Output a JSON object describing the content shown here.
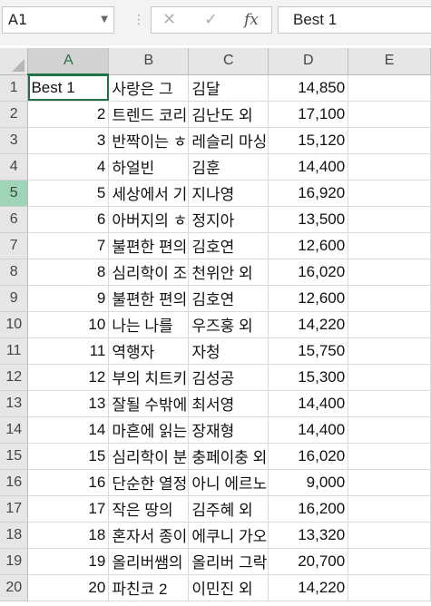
{
  "formula_bar": {
    "name_box": "A1",
    "cancel_icon": "✕",
    "enter_icon": "✓",
    "fx_label": "fx",
    "content": "Best 1"
  },
  "columns": [
    "A",
    "B",
    "C",
    "D",
    "E"
  ],
  "selected_column": "A",
  "highlighted_row": "5",
  "rows": [
    {
      "n": "1",
      "a": "Best 1",
      "b": "사랑은 그",
      "c": "김달",
      "d": "14,850"
    },
    {
      "n": "2",
      "a": "2",
      "b": "트렌드 코리",
      "c": "김난도 외",
      "d": "17,100"
    },
    {
      "n": "3",
      "a": "3",
      "b": "반짝이는 ㅎ",
      "c": "레슬리 마싱",
      "d": "15,120"
    },
    {
      "n": "4",
      "a": "4",
      "b": "하얼빈",
      "c": "김훈",
      "d": "14,400"
    },
    {
      "n": "5",
      "a": "5",
      "b": "세상에서 기",
      "c": "지나영",
      "d": "16,920"
    },
    {
      "n": "6",
      "a": "6",
      "b": "아버지의 ㅎ",
      "c": "정지아",
      "d": "13,500"
    },
    {
      "n": "7",
      "a": "7",
      "b": "불편한 편의",
      "c": "김호연",
      "d": "12,600"
    },
    {
      "n": "8",
      "a": "8",
      "b": "심리학이 조",
      "c": "천위안 외",
      "d": "16,020"
    },
    {
      "n": "9",
      "a": "9",
      "b": "불편한 편의",
      "c": "김호연",
      "d": "12,600"
    },
    {
      "n": "10",
      "a": "10",
      "b": "나는 나를",
      "c": "우즈훙 외",
      "d": "14,220"
    },
    {
      "n": "11",
      "a": "11",
      "b": "역행자",
      "c": "자청",
      "d": "15,750"
    },
    {
      "n": "12",
      "a": "12",
      "b": "부의 치트키",
      "c": "김성공",
      "d": "15,300"
    },
    {
      "n": "13",
      "a": "13",
      "b": "잘될 수밖에",
      "c": "최서영",
      "d": "14,400"
    },
    {
      "n": "14",
      "a": "14",
      "b": "마흔에 읽는",
      "c": "장재형",
      "d": "14,400"
    },
    {
      "n": "15",
      "a": "15",
      "b": "심리학이 분",
      "c": "충페이충 외",
      "d": "16,020"
    },
    {
      "n": "16",
      "a": "16",
      "b": "단순한 열정",
      "c": "아니 에르노",
      "d": "9,000"
    },
    {
      "n": "17",
      "a": "17",
      "b": "작은 땅의",
      "c": "김주혜 외",
      "d": "16,200"
    },
    {
      "n": "18",
      "a": "18",
      "b": "혼자서 종이",
      "c": "에쿠니 가오",
      "d": "13,320"
    },
    {
      "n": "19",
      "a": "19",
      "b": "올리버쌤의",
      "c": "올리버 그락",
      "d": "20,700"
    },
    {
      "n": "20",
      "a": "20",
      "b": "파친코 2",
      "c": "이민진 외",
      "d": "14,220"
    }
  ]
}
